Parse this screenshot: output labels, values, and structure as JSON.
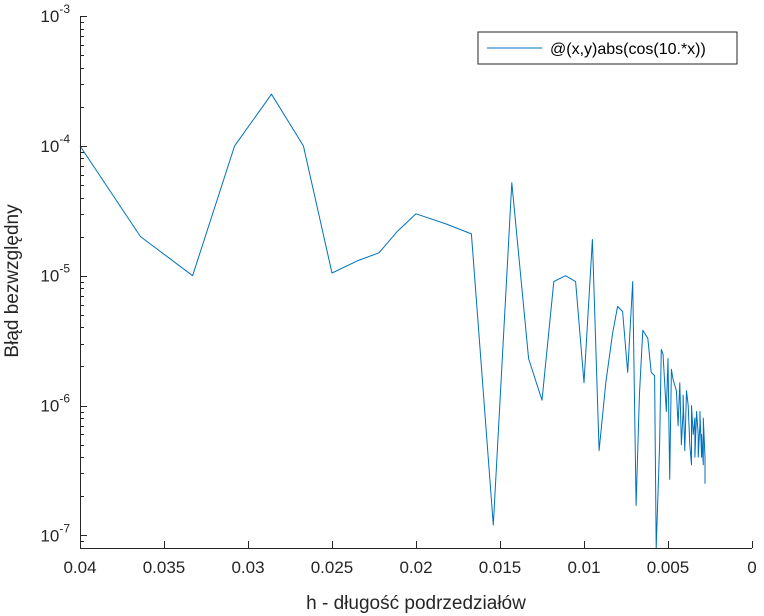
{
  "chart_data": {
    "type": "line",
    "xlabel": "h - długość podrzedziałów",
    "ylabel": "Błąd bezwzględny",
    "x_reversed": true,
    "y_scale": "log",
    "xlim": [
      0,
      0.04
    ],
    "ylim": [
      8e-08,
      0.001
    ],
    "grid": false,
    "legend_position": "top-right",
    "x_ticks": [
      0.04,
      0.035,
      0.03,
      0.025,
      0.02,
      0.015,
      0.01,
      0.005,
      0
    ],
    "x_tick_labels": [
      "0.04",
      "0.035",
      "0.03",
      "0.025",
      "0.02",
      "0.015",
      "0.01",
      "0.005",
      "0"
    ],
    "y_ticks": [
      {
        "value": 1e-07,
        "base": "10",
        "exp": "-7"
      },
      {
        "value": 1e-06,
        "base": "10",
        "exp": "-6"
      },
      {
        "value": 1e-05,
        "base": "10",
        "exp": "-5"
      },
      {
        "value": 0.0001,
        "base": "10",
        "exp": "-4"
      },
      {
        "value": 0.001,
        "base": "10",
        "exp": "-3"
      }
    ],
    "series": [
      {
        "name": "@(x,y)abs(cos(10.*x))",
        "color": "#0072BD",
        "x": [
          0.04,
          0.0364,
          0.0333,
          0.0308,
          0.0286,
          0.0267,
          0.025,
          0.0235,
          0.0222,
          0.0211,
          0.02,
          0.0182,
          0.0167,
          0.0154,
          0.0143,
          0.0133,
          0.0125,
          0.0118,
          0.0111,
          0.0105,
          0.01,
          0.0095,
          0.0091,
          0.0087,
          0.0083,
          0.008,
          0.0077,
          0.0074,
          0.0071,
          0.0069,
          0.0067,
          0.0065,
          0.0062,
          0.006,
          0.0058,
          0.0057,
          0.0055,
          0.0054,
          0.0053,
          0.0051,
          0.005,
          0.0049,
          0.0048,
          0.0047,
          0.0045,
          0.0044,
          0.0043,
          0.0042,
          0.0041,
          0.0041,
          0.004,
          0.0039,
          0.0038,
          0.0037,
          0.0036,
          0.0036,
          0.0035,
          0.0034,
          0.0034,
          0.0033,
          0.0032,
          0.0032,
          0.0031,
          0.0031,
          0.003,
          0.003,
          0.0029,
          0.0029,
          0.0028,
          0.0028
        ],
        "values": [
          0.0001,
          2e-05,
          1e-05,
          0.0001,
          0.00025,
          0.0001,
          1.05e-05,
          1.3e-05,
          1.5e-05,
          2.2e-05,
          3e-05,
          2.5e-05,
          2.1e-05,
          1.2e-07,
          5.2e-05,
          2.3e-06,
          1.1e-06,
          9e-06,
          1e-05,
          9e-06,
          1.5e-06,
          1.9e-05,
          4.5e-07,
          1.5e-06,
          3.6e-06,
          5.8e-06,
          5.3e-06,
          1.8e-06,
          9e-06,
          1.7e-07,
          1.2e-06,
          3.8e-06,
          3.3e-06,
          1.8e-06,
          1.7e-06,
          8e-08,
          5e-07,
          2.7e-06,
          2.5e-06,
          9e-07,
          2.3e-06,
          2.7e-07,
          1.9e-06,
          1.6e-06,
          1.3e-06,
          7e-07,
          1.5e-06,
          5e-07,
          9e-07,
          1.2e-06,
          4.5e-07,
          1.3e-06,
          1e-06,
          5e-07,
          3.5e-07,
          1e-06,
          6e-07,
          8e-07,
          4e-07,
          9e-07,
          6e-07,
          4e-07,
          7e-07,
          9e-07,
          4e-07,
          6e-07,
          3.5e-07,
          8e-07,
          4e-07,
          2.5e-07
        ]
      }
    ]
  }
}
